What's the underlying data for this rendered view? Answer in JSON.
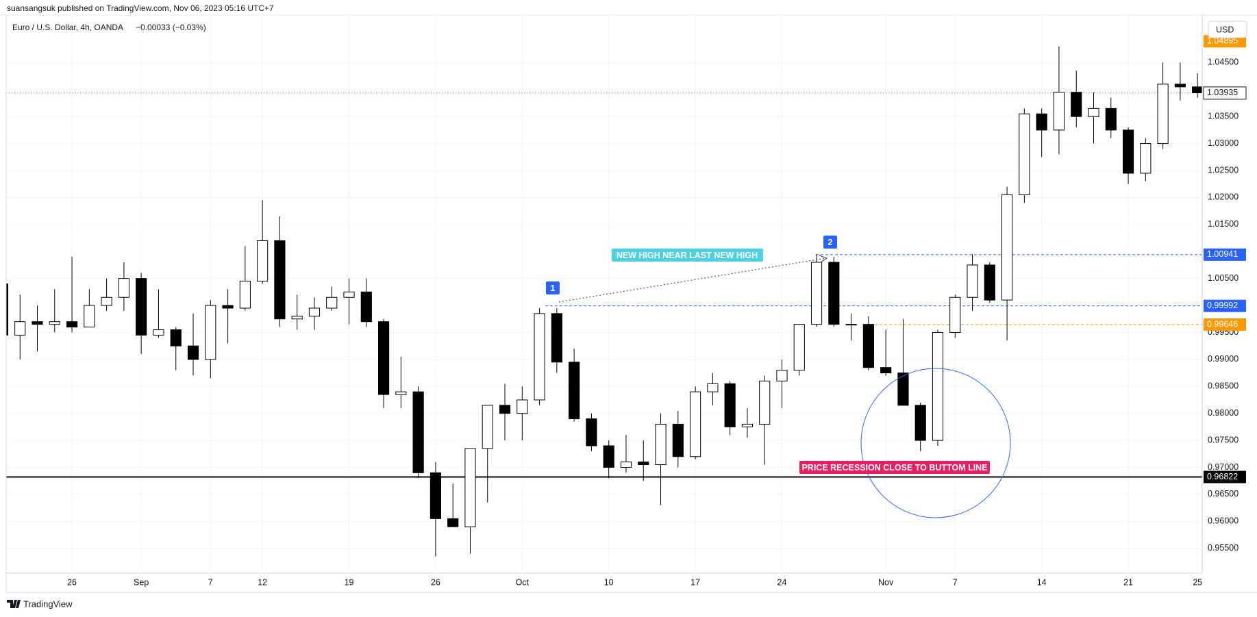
{
  "header": {
    "published": "suansangsuk published on TradingView.com, Nov 06, 2023 05:16 UTC+7",
    "logo": "TradingView"
  },
  "chart_data": {
    "type": "candlestick",
    "title": "Euro / U.S. Dollar, 4h, OANDA",
    "change": "−0.00033 (−0.03%)",
    "currency": "USD",
    "open": [
      1.004,
      0.9945,
      0.997,
      0.9965,
      0.997,
      0.996,
      1.0,
      1.0015,
      1.005,
      0.9945,
      0.9955,
      0.9925,
      0.99,
      1.0,
      0.9995,
      1.0045,
      1.012,
      0.9975,
      0.998,
      0.9995,
      1.0015,
      1.0025,
      0.997,
      0.9835,
      0.984,
      0.969,
      0.9605,
      0.959,
      0.9735,
      0.9815,
      0.98,
      0.9825,
      0.9985,
      0.9895,
      0.979,
      0.974,
      0.97,
      0.971,
      0.9705,
      0.978,
      0.972,
      0.984,
      0.9855,
      0.9775,
      0.978,
      0.986,
      0.988,
      0.9965,
      1.008,
      0.9965,
      0.9965,
      0.9885,
      0.9875,
      0.9815,
      0.975,
      0.995,
      1.0015,
      1.0075,
      1.001,
      1.0205,
      1.0355,
      1.0325,
      1.0395,
      1.035,
      1.0365,
      1.0325,
      1.0245,
      1.03,
      1.041,
      1.0405
    ],
    "high": [
      1.006,
      1.002,
      1.0,
      1.003,
      1.009,
      1.003,
      1.005,
      1.008,
      1.006,
      1.003,
      0.996,
      0.9985,
      1.001,
      1.003,
      1.011,
      1.0195,
      1.0165,
      1.002,
      1.0015,
      1.0035,
      1.005,
      1.005,
      0.9975,
      0.9905,
      0.985,
      0.971,
      0.967,
      0.9725,
      0.9815,
      0.9855,
      0.985,
      0.9995,
      0.9995,
      0.992,
      0.98,
      0.975,
      0.976,
      0.975,
      0.98,
      0.9805,
      0.985,
      0.9875,
      0.986,
      0.981,
      0.987,
      0.99,
      0.9965,
      1.0095,
      1.009,
      0.9985,
      0.998,
      0.9955,
      0.9975,
      0.982,
      0.9955,
      1.002,
      1.0095,
      1.008,
      1.022,
      1.0365,
      1.0365,
      1.048,
      1.0435,
      1.0395,
      1.0385,
      1.033,
      1.031,
      1.045,
      1.045,
      1.043
    ],
    "low": [
      0.994,
      0.99,
      0.9915,
      0.995,
      0.995,
      0.996,
      0.999,
      0.999,
      0.991,
      0.994,
      0.988,
      0.987,
      0.9865,
      0.993,
      0.999,
      1.004,
      0.996,
      0.9955,
      0.9955,
      0.999,
      0.9965,
      0.996,
      0.981,
      0.981,
      0.968,
      0.9535,
      0.959,
      0.954,
      0.9635,
      0.975,
      0.975,
      0.9815,
      0.9875,
      0.9785,
      0.973,
      0.968,
      0.969,
      0.9675,
      0.963,
      0.97,
      0.9715,
      0.9815,
      0.976,
      0.9755,
      0.9705,
      0.981,
      0.987,
      0.996,
      0.996,
      0.9935,
      0.988,
      0.987,
      0.9815,
      0.973,
      0.974,
      0.994,
      0.999,
      1.0005,
      0.9935,
      1.019,
      1.0275,
      1.028,
      1.033,
      1.03,
      1.031,
      1.0225,
      1.023,
      1.029,
      1.038,
      1.0385
    ],
    "close": [
      0.9945,
      0.997,
      0.9965,
      0.997,
      0.996,
      1.0,
      1.0015,
      1.005,
      0.9945,
      0.9955,
      0.9925,
      0.99,
      1.0,
      0.9995,
      1.0045,
      1.012,
      0.9975,
      0.998,
      0.9995,
      1.0015,
      1.0025,
      0.997,
      0.9835,
      0.984,
      0.969,
      0.9605,
      0.959,
      0.9735,
      0.9815,
      0.98,
      0.9825,
      0.9985,
      0.9895,
      0.979,
      0.974,
      0.97,
      0.971,
      0.9705,
      0.978,
      0.972,
      0.984,
      0.9855,
      0.9775,
      0.978,
      0.986,
      0.988,
      0.9965,
      1.008,
      0.9965,
      0.9965,
      0.9885,
      0.9875,
      0.9815,
      0.975,
      0.995,
      1.0015,
      1.0075,
      1.001,
      1.0205,
      1.0355,
      1.0325,
      1.0395,
      1.035,
      1.0365,
      1.0325,
      1.0245,
      1.03,
      1.041,
      1.0405,
      1.0394
    ],
    "up_color": "#ffffff",
    "down_color": "#000000",
    "xlim": [
      0.2,
      69.27
    ],
    "xticks": [
      {
        "value": 4,
        "label": "26"
      },
      {
        "value": 8,
        "label": "Sep"
      },
      {
        "value": 12,
        "label": "7"
      },
      {
        "value": 15,
        "label": "12"
      },
      {
        "value": 20,
        "label": "19"
      },
      {
        "value": 25,
        "label": "26"
      },
      {
        "value": 30,
        "label": "Oct"
      },
      {
        "value": 35,
        "label": "10"
      },
      {
        "value": 40,
        "label": "17"
      },
      {
        "value": 45,
        "label": "24"
      },
      {
        "value": 51,
        "label": "Nov"
      },
      {
        "value": 55,
        "label": "7"
      },
      {
        "value": 60,
        "label": "14"
      },
      {
        "value": 65,
        "label": "21"
      },
      {
        "value": 69,
        "label": "25"
      }
    ],
    "ylim": [
      0.9504,
      1.0538
    ],
    "yticks": [
      {
        "value": 1.045,
        "label": "1.04500"
      },
      {
        "value": 1.035,
        "label": "1.03500"
      },
      {
        "value": 1.03,
        "label": "1.03000"
      },
      {
        "value": 1.025,
        "label": "1.02500"
      },
      {
        "value": 1.02,
        "label": "1.02000"
      },
      {
        "value": 1.015,
        "label": "1.01500"
      },
      {
        "value": 1.005,
        "label": "1.00500"
      },
      {
        "value": 0.995,
        "label": "0.99500"
      },
      {
        "value": 0.99,
        "label": "0.99000"
      },
      {
        "value": 0.985,
        "label": "0.98500"
      },
      {
        "value": 0.98,
        "label": "0.98000"
      },
      {
        "value": 0.975,
        "label": "0.97500"
      },
      {
        "value": 0.97,
        "label": "0.97000"
      },
      {
        "value": 0.965,
        "label": "0.96500"
      },
      {
        "value": 0.96,
        "label": "0.96000"
      },
      {
        "value": 0.955,
        "label": "0.95500"
      }
    ],
    "grid": true,
    "levels": [
      {
        "value": 1.04895,
        "color": "#ff9800",
        "line": "none"
      },
      {
        "value": 1.00941,
        "color": "#2962ff",
        "line": "dashed"
      },
      {
        "value": 0.99992,
        "color": "#2962ff",
        "line": "dashed"
      },
      {
        "value": 0.99646,
        "color": "#ff9800",
        "line": "dashed"
      },
      {
        "value": 0.96822,
        "color": "#000000",
        "line": "solid"
      }
    ],
    "last_price": 1.03935,
    "annotations": [
      {
        "text": "1",
        "color": "#2962ff"
      },
      {
        "text": "2",
        "color": "#2962ff"
      },
      {
        "text": "NEW HIGH NEAR LAST NEW HIGH",
        "color": "#4dd0e1"
      },
      {
        "text": "PRICE RECESSION CLOSE TO BUTTOM LINE",
        "color": "#e91e63"
      }
    ]
  }
}
